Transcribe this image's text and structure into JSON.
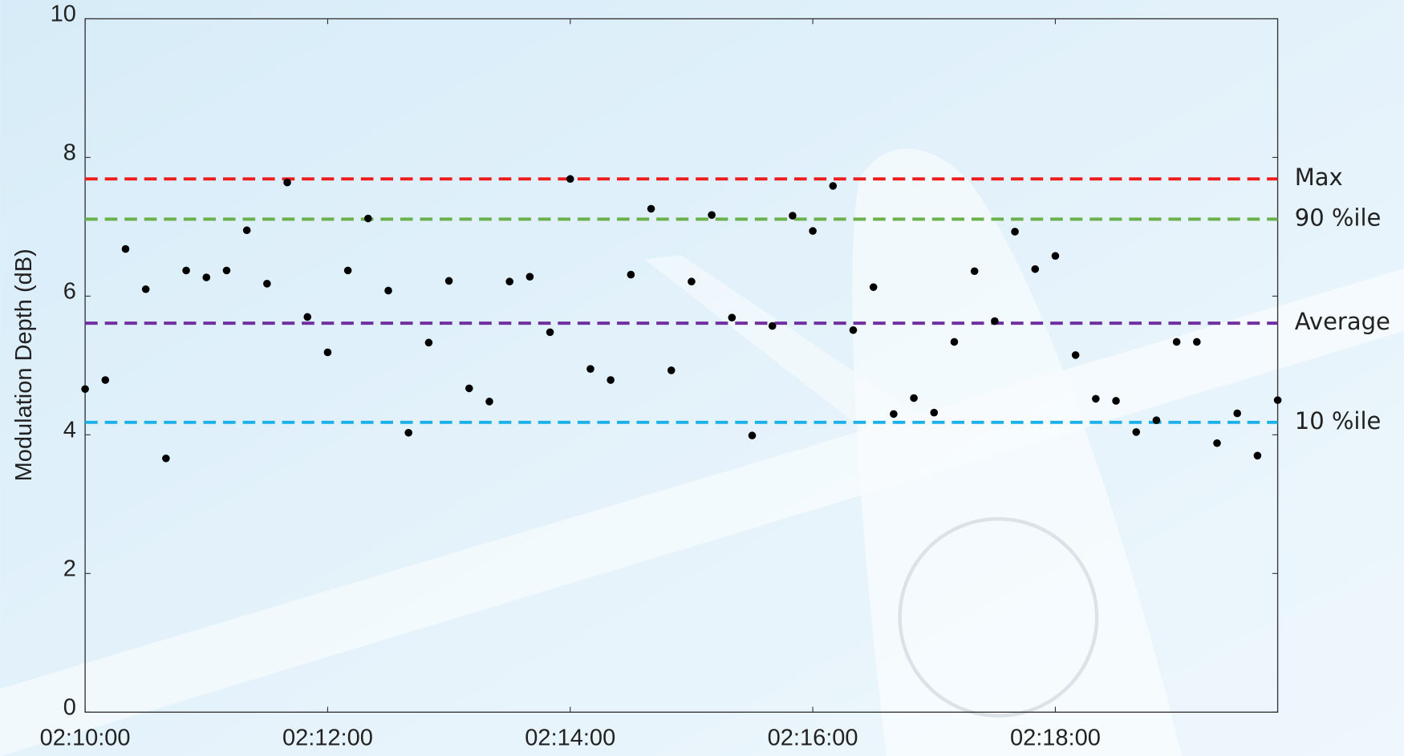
{
  "chart_data": {
    "type": "scatter",
    "y_label": "Modulation Depth (dB)",
    "x": [
      "02:10:00",
      "02:10:10",
      "02:10:20",
      "02:10:30",
      "02:10:40",
      "02:10:50",
      "02:11:00",
      "02:11:10",
      "02:11:20",
      "02:11:30",
      "02:11:40",
      "02:11:50",
      "02:12:00",
      "02:12:10",
      "02:12:20",
      "02:12:30",
      "02:12:40",
      "02:12:50",
      "02:13:00",
      "02:13:10",
      "02:13:20",
      "02:13:30",
      "02:13:40",
      "02:13:50",
      "02:14:00",
      "02:14:10",
      "02:14:20",
      "02:14:30",
      "02:14:40",
      "02:14:50",
      "02:15:00",
      "02:15:10",
      "02:15:20",
      "02:15:30",
      "02:15:40",
      "02:15:50",
      "02:16:00",
      "02:16:10",
      "02:16:20",
      "02:16:30",
      "02:16:40",
      "02:16:50",
      "02:17:00",
      "02:17:10",
      "02:17:20",
      "02:17:30",
      "02:17:40",
      "02:17:50",
      "02:18:00",
      "02:18:10",
      "02:18:20",
      "02:18:30",
      "02:18:40",
      "02:18:50",
      "02:19:00",
      "02:19:10",
      "02:19:20",
      "02:19:30",
      "02:19:40",
      "02:19:50"
    ],
    "values": [
      4.66,
      4.79,
      6.68,
      6.1,
      3.66,
      6.37,
      6.27,
      6.37,
      6.95,
      6.18,
      7.64,
      5.7,
      5.19,
      6.37,
      7.12,
      6.08,
      4.03,
      5.33,
      6.22,
      4.67,
      4.48,
      6.21,
      6.28,
      5.48,
      7.69,
      4.95,
      4.79,
      6.31,
      7.26,
      4.93,
      6.21,
      7.17,
      5.69,
      3.99,
      5.57,
      7.16,
      6.94,
      7.59,
      5.51,
      6.13,
      4.3,
      4.53,
      4.32,
      5.34,
      6.36,
      5.64,
      6.93,
      6.39,
      6.58,
      5.15,
      4.52,
      4.49,
      4.04,
      4.21,
      5.34,
      5.34,
      3.88,
      4.31,
      3.7,
      4.5
    ],
    "color": "#000000",
    "xlim": [
      "02:10:00",
      "02:19:50"
    ],
    "xticks": [
      "02:10:00",
      "02:12:00",
      "02:14:00",
      "02:16:00",
      "02:18:00"
    ],
    "ylim": [
      0,
      10
    ],
    "yticks": [
      0,
      2,
      4,
      6,
      8,
      10
    ],
    "reference_lines": [
      {
        "label": "Max",
        "value": 7.69,
        "color": "#ee1c1c"
      },
      {
        "label": "90 %ile",
        "value": 7.11,
        "color": "#6ab04c"
      },
      {
        "label": "Average",
        "value": 5.61,
        "color": "#7030a0"
      },
      {
        "label": "10 %ile",
        "value": 4.18,
        "color": "#1ab0e8"
      }
    ]
  }
}
